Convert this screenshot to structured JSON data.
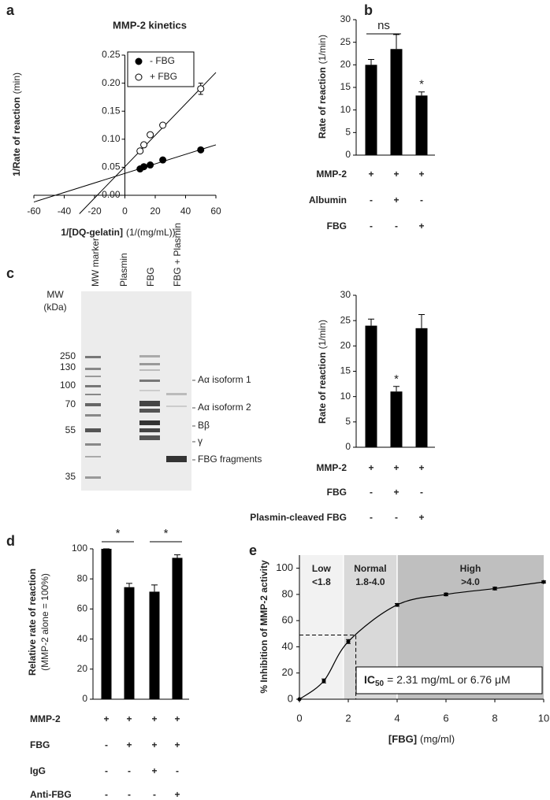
{
  "panel_labels": [
    "a",
    "b",
    "c",
    "d",
    "e"
  ],
  "chart_data": [
    {
      "type": "scatter",
      "title": "MMP-2 kinetics",
      "xlabel": "1/[DQ-gelatin]",
      "xunit": "(1/(mg/mL))",
      "ylabel": "1/Rate of reaction",
      "yunit": "(min)",
      "xlim": [
        -60,
        60
      ],
      "xticks": [
        -60,
        -40,
        -20,
        0,
        20,
        40,
        60
      ],
      "ylim": [
        0,
        0.25
      ],
      "yticks": [
        {
          "value": 0,
          "label": "0.00"
        },
        0.05,
        {
          "value": 0.1,
          "label": "0.10"
        },
        0.15,
        {
          "value": 0.2,
          "label": "0.20"
        },
        0.25
      ],
      "series": [
        {
          "name": "- FBG",
          "marker": "filled",
          "color": "#000000",
          "x": [
            10,
            12.5,
            16.7,
            25,
            50
          ],
          "values": [
            0.047,
            0.051,
            0.054,
            0.063,
            0.081
          ]
        },
        {
          "name": "+ FBG",
          "marker": "open",
          "color": "#000000",
          "x": [
            10,
            12.5,
            16.7,
            25,
            50
          ],
          "values": [
            0.079,
            0.09,
            0.108,
            0.125,
            0.19
          ],
          "errors": [
            null,
            null,
            null,
            null,
            0.01
          ]
        }
      ],
      "fit_lines": [
        {
          "x": [
            -60,
            60
          ],
          "values": [
            -0.012,
            0.09
          ]
        },
        {
          "x": [
            -30,
            60
          ],
          "values": [
            -0.033,
            0.219
          ]
        }
      ]
    },
    {
      "type": "bar",
      "ylabel": "Rate of reaction",
      "yunit": "(1/min)",
      "ylim": [
        0,
        30
      ],
      "yticks": [
        0,
        5,
        10,
        15,
        20,
        25,
        30
      ],
      "color": "#000000",
      "values": [
        20,
        23.5,
        13.2
      ],
      "errors": [
        1.2,
        3.2,
        0.8
      ],
      "annotations": [
        null,
        null,
        "*"
      ],
      "brackets": [
        "ns"
      ],
      "conditions": [
        {
          "name": "MMP-2",
          "signs": [
            "+",
            "+",
            "+"
          ]
        },
        {
          "name": "Albumin",
          "signs": [
            "-",
            "+",
            "-"
          ]
        },
        {
          "name": "FBG",
          "signs": [
            "-",
            "-",
            "+"
          ]
        }
      ]
    },
    {
      "type": "bar",
      "ylabel": "Rate of reaction",
      "yunit": "(1/min)",
      "ylim": [
        0,
        30
      ],
      "yticks": [
        0,
        5,
        10,
        15,
        20,
        25,
        30
      ],
      "color": "#000000",
      "values": [
        24,
        11,
        23.5
      ],
      "errors": [
        1.3,
        1.0,
        2.7
      ],
      "annotations": [
        null,
        "*",
        null
      ],
      "conditions": [
        {
          "name": "MMP-2",
          "signs": [
            "+",
            "+",
            "+"
          ]
        },
        {
          "name": "FBG",
          "signs": [
            "-",
            "+",
            "-"
          ]
        },
        {
          "name": "Plasmin-cleaved FBG",
          "signs": [
            "-",
            "-",
            "+"
          ]
        }
      ]
    },
    {
      "type": "bar",
      "ylabel": "Relative rate of reaction",
      "yunit": "(MMP-2 alone = 100%)",
      "ylim": [
        0,
        100
      ],
      "yticks": [
        0,
        20,
        40,
        60,
        80,
        100
      ],
      "color": "#000000",
      "values": [
        100,
        74.5,
        71.5,
        94
      ],
      "errors": [
        0,
        2.5,
        4.5,
        2
      ],
      "brackets": [
        "*",
        "*"
      ],
      "conditions": [
        {
          "name": "MMP-2",
          "signs": [
            "+",
            "+",
            "+",
            "+"
          ]
        },
        {
          "name": "FBG",
          "signs": [
            "-",
            "+",
            "+",
            "+"
          ]
        },
        {
          "name": "IgG",
          "signs": [
            "-",
            "-",
            "+",
            "-"
          ]
        },
        {
          "name": "Anti-FBG",
          "signs": [
            "-",
            "-",
            "-",
            "+"
          ]
        }
      ]
    },
    {
      "type": "line",
      "xlabel": "[FBG]",
      "xunit": "(mg/ml)",
      "ylabel": "% Inhibition of MMP-2 activity",
      "xlim": [
        0,
        10
      ],
      "xticks": [
        0,
        2,
        4,
        6,
        8,
        10
      ],
      "ylim": [
        0,
        110
      ],
      "yticks": [
        0,
        20,
        40,
        60,
        80,
        100
      ],
      "color": "#000000",
      "x": [
        0,
        1,
        2,
        4,
        6,
        8,
        10
      ],
      "values": [
        0,
        14,
        44,
        72,
        80,
        84.5,
        89.5
      ],
      "errors": [
        0,
        1.5,
        1.5,
        1,
        1,
        1,
        0.8
      ],
      "regions": [
        {
          "name": "Low",
          "range_label": "<1.8",
          "from": 0,
          "to": 1.8,
          "color": "#f2f2f2"
        },
        {
          "name": "Normal",
          "range_label": "1.8-4.0",
          "from": 1.8,
          "to": 4,
          "color": "#d9d9d9"
        },
        {
          "name": "High",
          "range_label": ">4.0",
          "from": 4,
          "to": 10,
          "color": "#bfbfbf"
        }
      ],
      "ic50": {
        "x": 2.31,
        "y": 49,
        "text": "IC",
        "subscript": "50",
        "text_after": "= 2.31 mg/mL or 6.76 μM"
      }
    }
  ],
  "gel": {
    "mw_title": "MW",
    "mw_unit": "(kDa)",
    "lanes": [
      "MW marker",
      "Plasmin",
      "FBG",
      "FBG + Plasmin"
    ],
    "mw_markers": [
      250,
      130,
      100,
      70,
      55,
      35
    ],
    "bands": [
      "Aα isoform 1",
      "Aα isoform 2",
      "Bβ",
      "γ",
      "FBG fragments"
    ]
  }
}
